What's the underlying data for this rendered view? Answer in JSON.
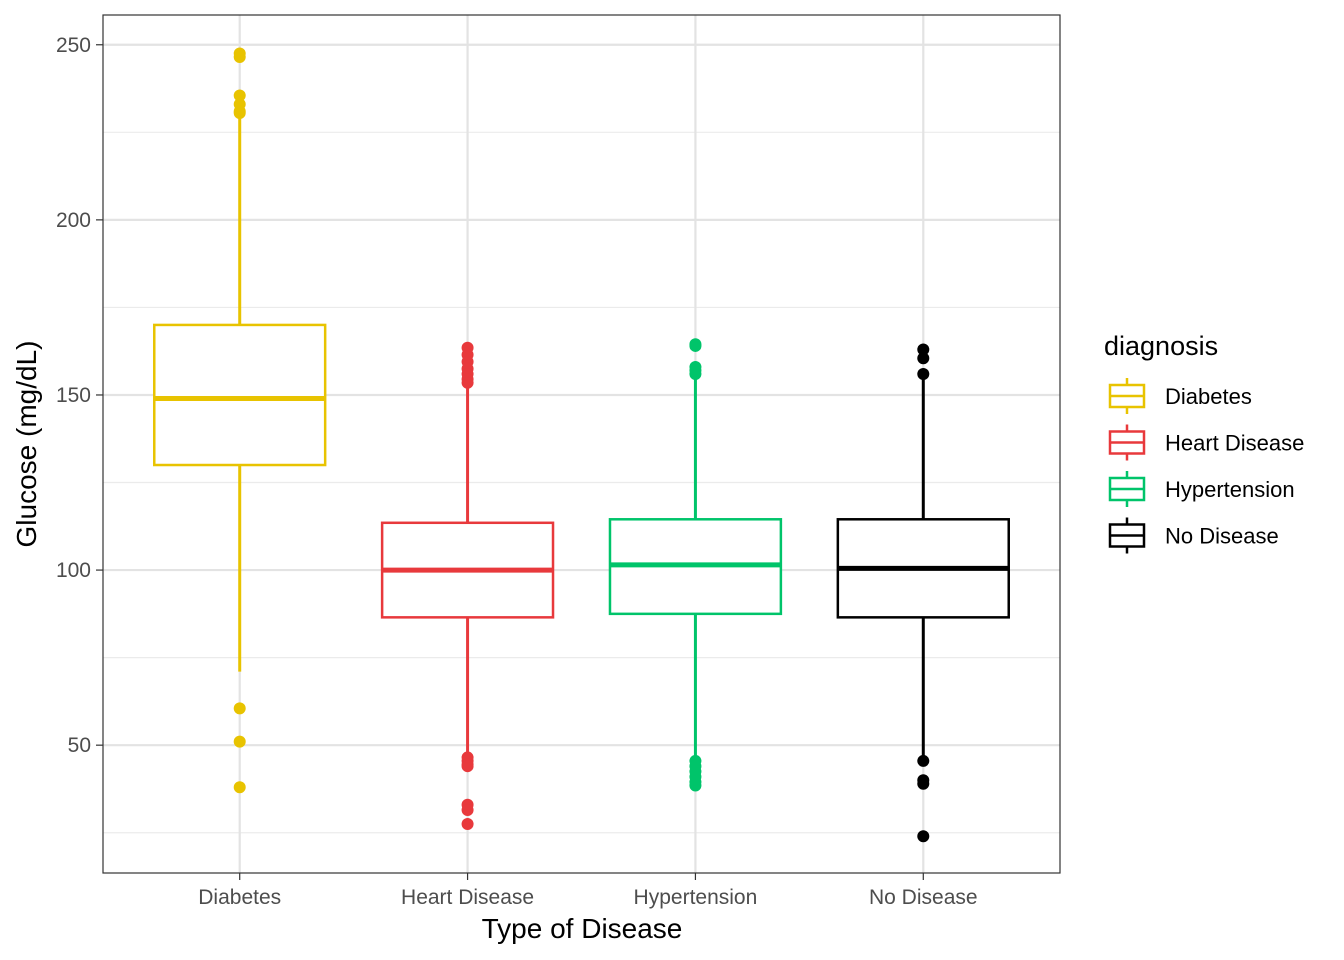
{
  "chart_data": {
    "type": "boxplot",
    "xlabel": "Type of Disease",
    "ylabel": "Glucose (mg/dL)",
    "ylim": [
      13.5,
      258.5
    ],
    "y_ticks": [
      50,
      100,
      150,
      200,
      250
    ],
    "y_tick_labels": [
      "50",
      "100",
      "150",
      "200",
      "250"
    ],
    "categories": [
      "Diabetes",
      "Heart Disease",
      "Hypertension",
      "No Disease"
    ],
    "grid": true,
    "legend": {
      "title": "diagnosis",
      "position": "right",
      "entries": [
        "Diabetes",
        "Heart Disease",
        "Hypertension",
        "No Disease"
      ]
    },
    "series": [
      {
        "name": "Diabetes",
        "color": "#E8C300",
        "q1": 130,
        "median": 149,
        "q3": 170,
        "whisker_low": 71,
        "whisker_high": 230,
        "outliers": [
          247.5,
          246.5,
          235.5,
          233,
          231,
          230.5,
          60.5,
          51,
          38
        ]
      },
      {
        "name": "Heart Disease",
        "color": "#E8393C",
        "q1": 86.5,
        "median": 100,
        "q3": 113.5,
        "whisker_low": 47,
        "whisker_high": 153,
        "outliers": [
          163.5,
          161.5,
          159.5,
          157.5,
          156,
          154.5,
          153.5,
          46.5,
          45.5,
          44.5,
          44,
          33,
          31.5,
          27.5
        ]
      },
      {
        "name": "Hypertension",
        "color": "#00C46A",
        "q1": 87.5,
        "median": 101.5,
        "q3": 114.5,
        "whisker_low": 46,
        "whisker_high": 155,
        "outliers": [
          164.5,
          164,
          158,
          157,
          156,
          45.5,
          44,
          42.5,
          41,
          39.5,
          38.5
        ]
      },
      {
        "name": "No Disease",
        "color": "#000000",
        "q1": 86.5,
        "median": 100.5,
        "q3": 114.5,
        "whisker_low": 46,
        "whisker_high": 155,
        "outliers": [
          163,
          160.5,
          156,
          45.5,
          40,
          39,
          24
        ]
      }
    ]
  }
}
